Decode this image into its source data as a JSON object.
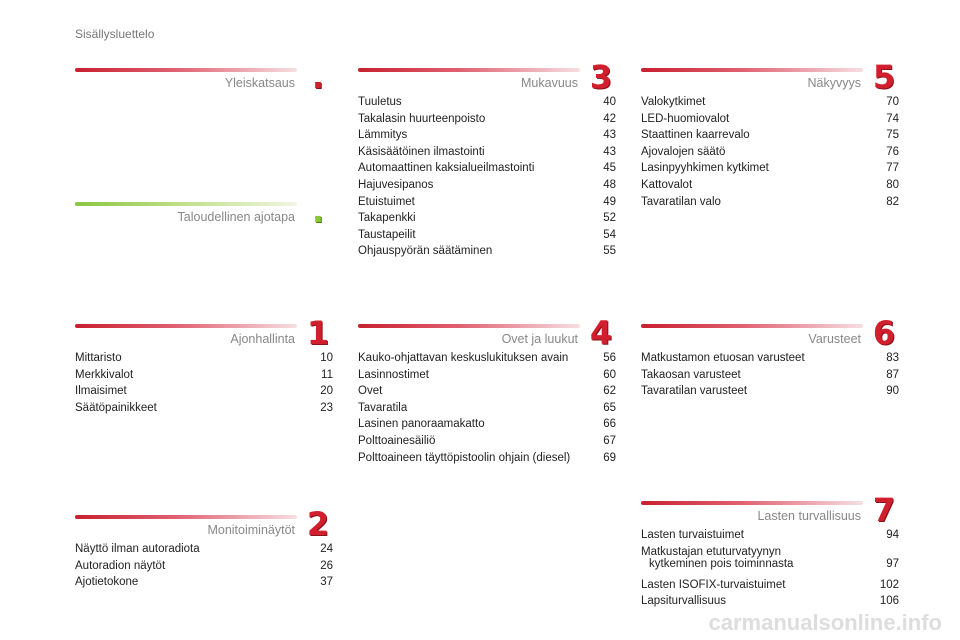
{
  "header": {
    "title": "Sisällysluettelo"
  },
  "watermark": "carmanualsonline.info",
  "sections": [
    {
      "title": "Yleiskatsaus",
      "badge": ".",
      "items": []
    },
    {
      "title": "Taloudellinen ajotapa",
      "badge": ".",
      "items": []
    },
    {
      "title": "Ajonhallinta",
      "badge": "1",
      "items": [
        {
          "label": "Mittaristo",
          "page": 10
        },
        {
          "label": "Merkkivalot",
          "page": 11
        },
        {
          "label": "Ilmaisimet",
          "page": 20
        },
        {
          "label": "Säätöpainikkeet",
          "page": 23
        }
      ]
    },
    {
      "title": "Monitoiminäytöt",
      "badge": "2",
      "items": [
        {
          "label": "Näyttö ilman autoradiota",
          "page": 24
        },
        {
          "label": "Autoradion näytöt",
          "page": 26
        },
        {
          "label": "Ajotietokone",
          "page": 37
        }
      ]
    },
    {
      "title": "Mukavuus",
      "badge": "3",
      "items": [
        {
          "label": "Tuuletus",
          "page": 40
        },
        {
          "label": "Takalasin huurteenpoisto",
          "page": 42
        },
        {
          "label": "Lämmitys",
          "page": 43
        },
        {
          "label": "Käsisäätöinen ilmastointi",
          "page": 43
        },
        {
          "label": "Automaattinen kaksialueilmastointi",
          "page": 45
        },
        {
          "label": "Hajuvesipanos",
          "page": 48
        },
        {
          "label": "Etuistuimet",
          "page": 49
        },
        {
          "label": "Takapenkki",
          "page": 52
        },
        {
          "label": "Taustapeilit",
          "page": 54
        },
        {
          "label": "Ohjauspyörän säätäminen",
          "page": 55
        }
      ]
    },
    {
      "title": "Ovet ja luukut",
      "badge": "4",
      "items": [
        {
          "label": "Kauko-ohjattavan keskuslukituksen avain",
          "page": 56
        },
        {
          "label": "Lasinnostimet",
          "page": 60
        },
        {
          "label": "Ovet",
          "page": 62
        },
        {
          "label": "Tavaratila",
          "page": 65
        },
        {
          "label": "Lasinen panoraamakatto",
          "page": 66
        },
        {
          "label": "Polttoainesäiliö",
          "page": 67
        },
        {
          "label": "Polttoaineen täyttöpistoolin ohjain (diesel)",
          "page": 69
        }
      ]
    },
    {
      "title": "Näkyvyys",
      "badge": "5",
      "items": [
        {
          "label": "Valokytkimet",
          "page": 70
        },
        {
          "label": "LED-huomiovalot",
          "page": 74
        },
        {
          "label": "Staattinen kaarrevalo",
          "page": 75
        },
        {
          "label": "Ajovalojen säätö",
          "page": 76
        },
        {
          "label": "Lasinpyyhkimen kytkimet",
          "page": 77
        },
        {
          "label": "Kattovalot",
          "page": 80
        },
        {
          "label": "Tavaratilan valo",
          "page": 82
        }
      ]
    },
    {
      "title": "Varusteet",
      "badge": "6",
      "items": [
        {
          "label": "Matkustamon etuosan varusteet",
          "page": 83
        },
        {
          "label": "Takaosan varusteet",
          "page": 87
        },
        {
          "label": "Tavaratilan varusteet",
          "page": 90
        }
      ]
    },
    {
      "title": "Lasten turvallisuus",
      "badge": "7",
      "items": [
        {
          "label": "Lasten turvaistuimet",
          "page": 94
        },
        {
          "label": [
            "Matkustajan etuturvatyynyn",
            "kytkeminen pois toiminnasta"
          ],
          "page": 97
        },
        {
          "label": "Lasten ISOFIX-turvaistuimet",
          "page": 102
        },
        {
          "label": "Lapsiturvallisuus",
          "page": 106
        }
      ]
    }
  ]
}
